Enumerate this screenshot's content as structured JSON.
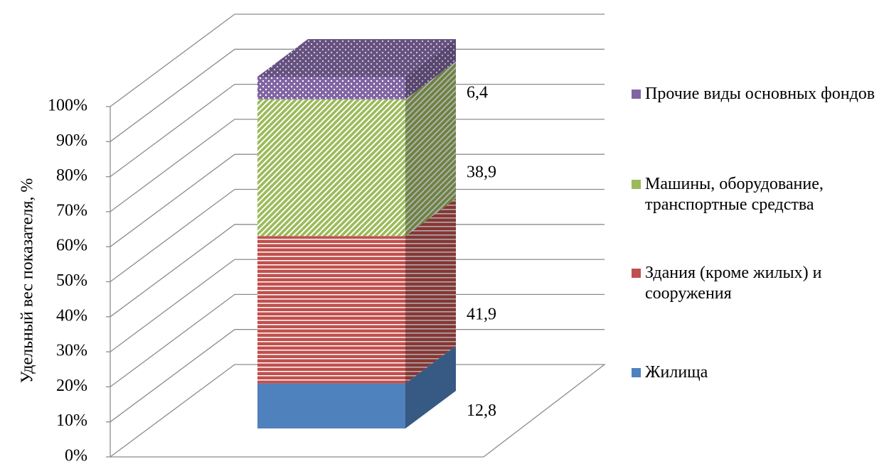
{
  "chart_data": {
    "type": "stacked_bar_3d",
    "y_label": "Удельный вес показателя, %",
    "categories": [
      null
    ],
    "series": [
      {
        "name": "Жилища",
        "color": "#4f81bd",
        "pattern": "solid",
        "values": [
          12.8
        ],
        "value_labels": [
          "12,8"
        ]
      },
      {
        "name": "Здания (кроме жилых) и сооружения",
        "color": "#c0504d",
        "pattern": "horizontal",
        "values": [
          41.9
        ],
        "value_labels": [
          "41,9"
        ]
      },
      {
        "name": "Машины, оборудование, транспортные средства",
        "color": "#9bbb59",
        "pattern": "diagonal",
        "values": [
          38.9
        ],
        "value_labels": [
          "38,9"
        ]
      },
      {
        "name": "Прочие виды основных фондов",
        "color": "#8064a2",
        "pattern": "dots",
        "values": [
          6.4
        ],
        "value_labels": [
          "6,4"
        ]
      }
    ],
    "ylim": [
      0,
      100
    ],
    "yticks": [
      {
        "value": 0,
        "label": "0%"
      },
      {
        "value": 10,
        "label": "10%"
      },
      {
        "value": 20,
        "label": "20%"
      },
      {
        "value": 30,
        "label": "30%"
      },
      {
        "value": 40,
        "label": "40%"
      },
      {
        "value": 50,
        "label": "50%"
      },
      {
        "value": 60,
        "label": "60%"
      },
      {
        "value": 70,
        "label": "70%"
      },
      {
        "value": 80,
        "label": "80%"
      },
      {
        "value": 90,
        "label": "90%"
      },
      {
        "value": 100,
        "label": "100%"
      }
    ],
    "grid": true,
    "legend": "right"
  }
}
